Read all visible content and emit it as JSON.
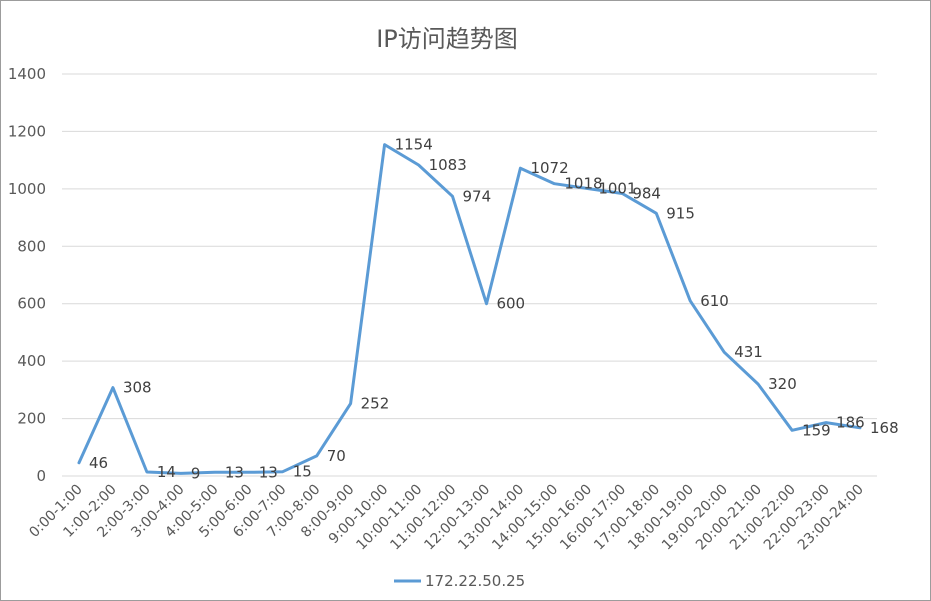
{
  "chart_data": {
    "type": "line",
    "title": "IP访问趋势图",
    "xlabel": "",
    "ylabel": "",
    "ylim": [
      0,
      1400
    ],
    "y_ticks": [
      0,
      200,
      400,
      600,
      800,
      1000,
      1200,
      1400
    ],
    "grid": true,
    "legend_position": "bottom",
    "categories": [
      "0:00-1:00",
      "1:00-2:00",
      "2:00-3:00",
      "3:00-4:00",
      "4:00-5:00",
      "5:00-6:00",
      "6:00-7:00",
      "7:00-8:00",
      "8:00-9:00",
      "9:00-10:00",
      "10:00-11:00",
      "11:00-12:00",
      "12:00-13:00",
      "13:00-14:00",
      "14:00-15:00",
      "15:00-16:00",
      "16:00-17:00",
      "17:00-18:00",
      "18:00-19:00",
      "19:00-20:00",
      "20:00-21:00",
      "21:00-22:00",
      "22:00-23:00",
      "23:00-24:00"
    ],
    "series": [
      {
        "name": "172.22.50.25",
        "color": "#5b9bd5",
        "values": [
          46,
          308,
          14,
          9,
          13,
          13,
          15,
          70,
          252,
          1154,
          1083,
          974,
          600,
          1072,
          1018,
          1001,
          984,
          915,
          610,
          431,
          320,
          159,
          186,
          168
        ]
      }
    ]
  }
}
